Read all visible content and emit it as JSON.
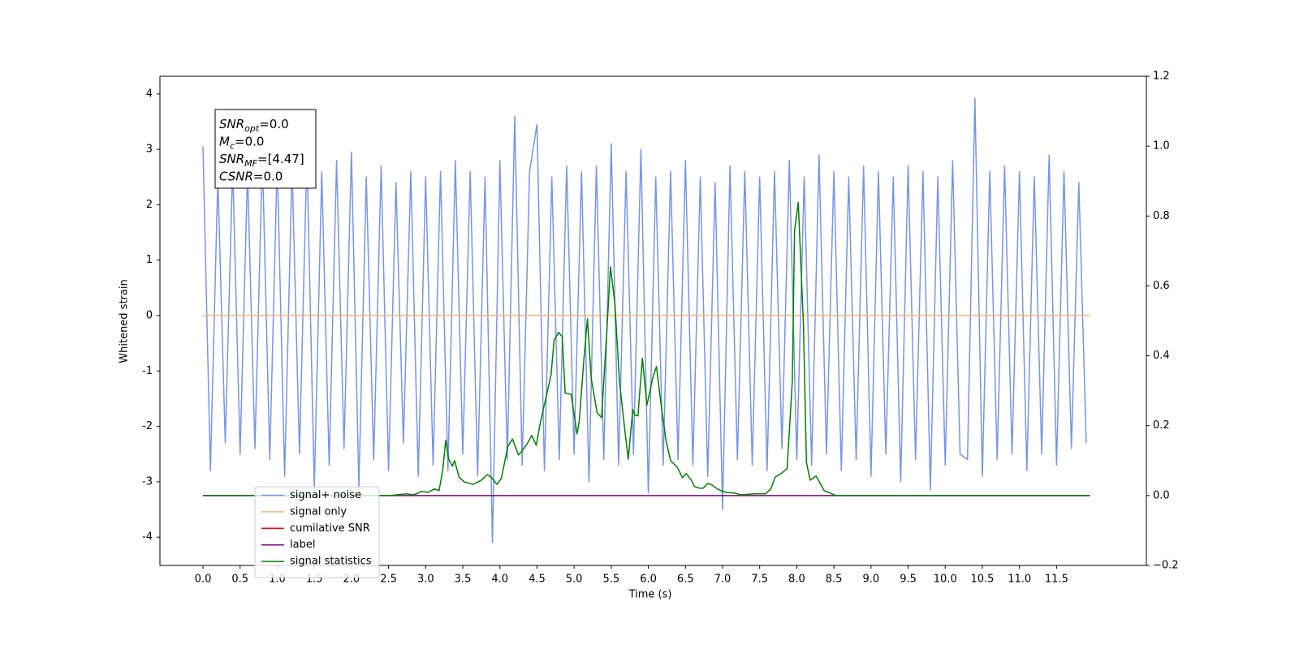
{
  "chart_data": {
    "type": "line",
    "xlabel": "Time (s)",
    "ylabel": "Whitened strain",
    "xlim": [
      -0.58,
      12.71
    ],
    "ylim": [
      -4.51,
      4.32
    ],
    "y2lim": [
      -0.2,
      1.2
    ],
    "xticks": [
      {
        "value": 0,
        "label": "0.0"
      },
      0.5,
      {
        "value": 1,
        "label": "1.0"
      },
      1.5,
      {
        "value": 2,
        "label": "2.0"
      },
      2.5,
      {
        "value": 3,
        "label": "3.0"
      },
      3.5,
      {
        "value": 4,
        "label": "4.0"
      },
      4.5,
      {
        "value": 5,
        "label": "5.0"
      },
      5.5,
      {
        "value": 6,
        "label": "6.0"
      },
      6.5,
      {
        "value": 7,
        "label": "7.0"
      },
      7.5,
      {
        "value": 8,
        "label": "8.0"
      },
      8.5,
      {
        "value": 9,
        "label": "9.0"
      },
      9.5,
      {
        "value": 10,
        "label": "10.0"
      },
      10.5,
      {
        "value": 11,
        "label": "11.0"
      },
      11.5
    ],
    "yticks": [
      -4,
      -3,
      -2,
      -1,
      0,
      1,
      2,
      3,
      4
    ],
    "y2ticks": [
      {
        "value": -0.2,
        "label": "−0.2"
      },
      {
        "value": 0,
        "label": "0.0"
      },
      0.2,
      0.4,
      0.6,
      0.8,
      {
        "value": 1,
        "label": "1.0"
      },
      1.2
    ],
    "legend": "lower left",
    "annotation": [
      {
        "symbol": "SNR",
        "sub": "opt",
        "text": "=0.0"
      },
      {
        "symbol": "M",
        "sub": "c",
        "text": "=0.0"
      },
      {
        "symbol": "SNR",
        "sub": "MF",
        "text": "=[4.47]"
      },
      {
        "symbol": "CSNR",
        "text": "=0.0"
      }
    ],
    "series": [
      {
        "name": "signal+ noise",
        "color": "#7994e8",
        "x": [
          0.0,
          0.1,
          0.2,
          0.3,
          0.4,
          0.5,
          0.6,
          0.7,
          0.8,
          0.9,
          1.0,
          1.1,
          1.2,
          1.3,
          1.4,
          1.5,
          1.6,
          1.7,
          1.8,
          1.9,
          2.0,
          2.1,
          2.2,
          2.3,
          2.4,
          2.5,
          2.6,
          2.7,
          2.8,
          2.9,
          3.0,
          3.1,
          3.2,
          3.3,
          3.4,
          3.5,
          3.6,
          3.7,
          3.8,
          3.9,
          4.0,
          4.1,
          4.2,
          4.3,
          4.4,
          4.5,
          4.6,
          4.7,
          4.8,
          4.9,
          5.0,
          5.1,
          5.2,
          5.3,
          5.4,
          5.5,
          5.6,
          5.7,
          5.8,
          5.9,
          6.0,
          6.1,
          6.2,
          6.3,
          6.4,
          6.5,
          6.6,
          6.7,
          6.8,
          6.9,
          7.0,
          7.1,
          7.2,
          7.3,
          7.4,
          7.5,
          7.6,
          7.7,
          7.8,
          7.9,
          8.0,
          8.1,
          8.2,
          8.3,
          8.4,
          8.5,
          8.6,
          8.7,
          8.8,
          8.9,
          9.0,
          9.1,
          9.2,
          9.3,
          9.4,
          9.5,
          9.6,
          9.7,
          9.8,
          9.9,
          10.0,
          10.1,
          10.2,
          10.3,
          10.4,
          10.5,
          10.6,
          10.7,
          10.8,
          10.9,
          11.0,
          11.1,
          11.2,
          11.3,
          11.4,
          11.5,
          11.6,
          11.7,
          11.8,
          11.9
        ],
        "values": [
          3.05,
          -2.8,
          2.5,
          -2.3,
          2.7,
          -2.5,
          2.6,
          -2.4,
          2.9,
          -2.6,
          2.8,
          -2.9,
          2.7,
          -2.5,
          2.9,
          -3.1,
          2.6,
          -2.7,
          2.8,
          -2.4,
          2.95,
          -3.1,
          2.5,
          -2.6,
          2.7,
          -2.8,
          2.4,
          -2.3,
          2.6,
          -2.9,
          2.5,
          -2.7,
          2.6,
          -2.8,
          2.8,
          -2.5,
          2.6,
          -2.9,
          2.5,
          -4.1,
          2.8,
          -2.6,
          3.6,
          -2.7,
          2.6,
          3.45,
          -2.8,
          2.5,
          -2.6,
          2.7,
          -2.5,
          2.6,
          -3.0,
          2.7,
          -2.6,
          3.1,
          -2.7,
          2.6,
          -2.5,
          3.0,
          -3.2,
          2.5,
          -2.7,
          2.6,
          -2.6,
          2.8,
          -2.7,
          2.5,
          -2.9,
          2.4,
          -3.5,
          2.7,
          -2.6,
          2.6,
          -2.7,
          2.5,
          -2.8,
          2.6,
          -2.4,
          2.8,
          -2.6,
          2.5,
          -2.7,
          2.9,
          -2.5,
          2.6,
          -2.8,
          2.5,
          -2.6,
          2.7,
          -2.9,
          2.6,
          -2.5,
          2.5,
          -3.0,
          2.7,
          -2.6,
          2.6,
          -3.15,
          2.5,
          -2.7,
          2.8,
          -2.5,
          -2.6,
          3.92,
          -2.9,
          2.6,
          -2.6,
          2.7,
          -2.5,
          2.6,
          -2.8,
          2.5,
          -2.5,
          2.9,
          -2.7,
          2.6,
          -2.4,
          2.4,
          -2.3
        ]
      },
      {
        "name": "signal only",
        "color": "#f5b971",
        "x": [
          0,
          11.95
        ],
        "values": [
          0,
          0
        ]
      },
      {
        "name": "cumilative SNR",
        "color": "#ff0000",
        "x": [],
        "values": []
      },
      {
        "name": "label",
        "color": "#800080",
        "axis": "y2",
        "x": [
          0,
          11.95
        ],
        "values": [
          0,
          0
        ]
      },
      {
        "name": "signal statistics",
        "color": "#008000",
        "axis": "y2",
        "x": [
          0.0,
          2.52,
          2.74,
          2.84,
          2.95,
          3.03,
          3.12,
          3.18,
          3.23,
          3.27,
          3.31,
          3.36,
          3.39,
          3.45,
          3.52,
          3.64,
          3.75,
          3.83,
          3.88,
          3.96,
          4.02,
          4.07,
          4.11,
          4.17,
          4.25,
          4.3,
          4.37,
          4.43,
          4.49,
          4.55,
          4.62,
          4.69,
          4.73,
          4.79,
          4.84,
          4.88,
          4.96,
          5.04,
          5.07,
          5.13,
          5.18,
          5.23,
          5.31,
          5.37,
          5.44,
          5.49,
          5.55,
          5.61,
          5.68,
          5.73,
          5.79,
          5.82,
          5.86,
          5.92,
          5.98,
          6.06,
          6.11,
          6.18,
          6.24,
          6.3,
          6.39,
          6.46,
          6.51,
          6.58,
          6.62,
          6.69,
          6.74,
          6.8,
          6.86,
          6.93,
          6.98,
          7.05,
          7.17,
          7.24,
          7.44,
          7.58,
          7.65,
          7.71,
          7.79,
          7.87,
          7.94,
          7.97,
          8.02,
          8.09,
          8.13,
          8.18,
          8.26,
          8.37,
          8.53,
          11.95
        ],
        "values": [
          0,
          0,
          0.005,
          0.002,
          0.012,
          0.009,
          0.019,
          0.014,
          0.072,
          0.158,
          0.104,
          0.084,
          0.1,
          0.053,
          0.039,
          0.032,
          0.044,
          0.06,
          0.053,
          0.032,
          0.049,
          0.102,
          0.142,
          0.162,
          0.116,
          0.128,
          0.149,
          0.172,
          0.144,
          0.214,
          0.279,
          0.346,
          0.444,
          0.467,
          0.455,
          0.293,
          0.29,
          0.176,
          0.214,
          0.385,
          0.506,
          0.336,
          0.237,
          0.223,
          0.467,
          0.655,
          0.548,
          0.33,
          0.193,
          0.104,
          0.246,
          0.23,
          0.228,
          0.393,
          0.258,
          0.337,
          0.369,
          0.246,
          0.156,
          0.1,
          0.081,
          0.051,
          0.063,
          0.044,
          0.026,
          0.021,
          0.021,
          0.035,
          0.03,
          0.019,
          0.014,
          0.009,
          0.007,
          0.002,
          0.005,
          0.005,
          0.019,
          0.053,
          0.063,
          0.077,
          0.328,
          0.758,
          0.839,
          0.488,
          0.095,
          0.044,
          0.056,
          0.014,
          0,
          0
        ]
      }
    ]
  }
}
